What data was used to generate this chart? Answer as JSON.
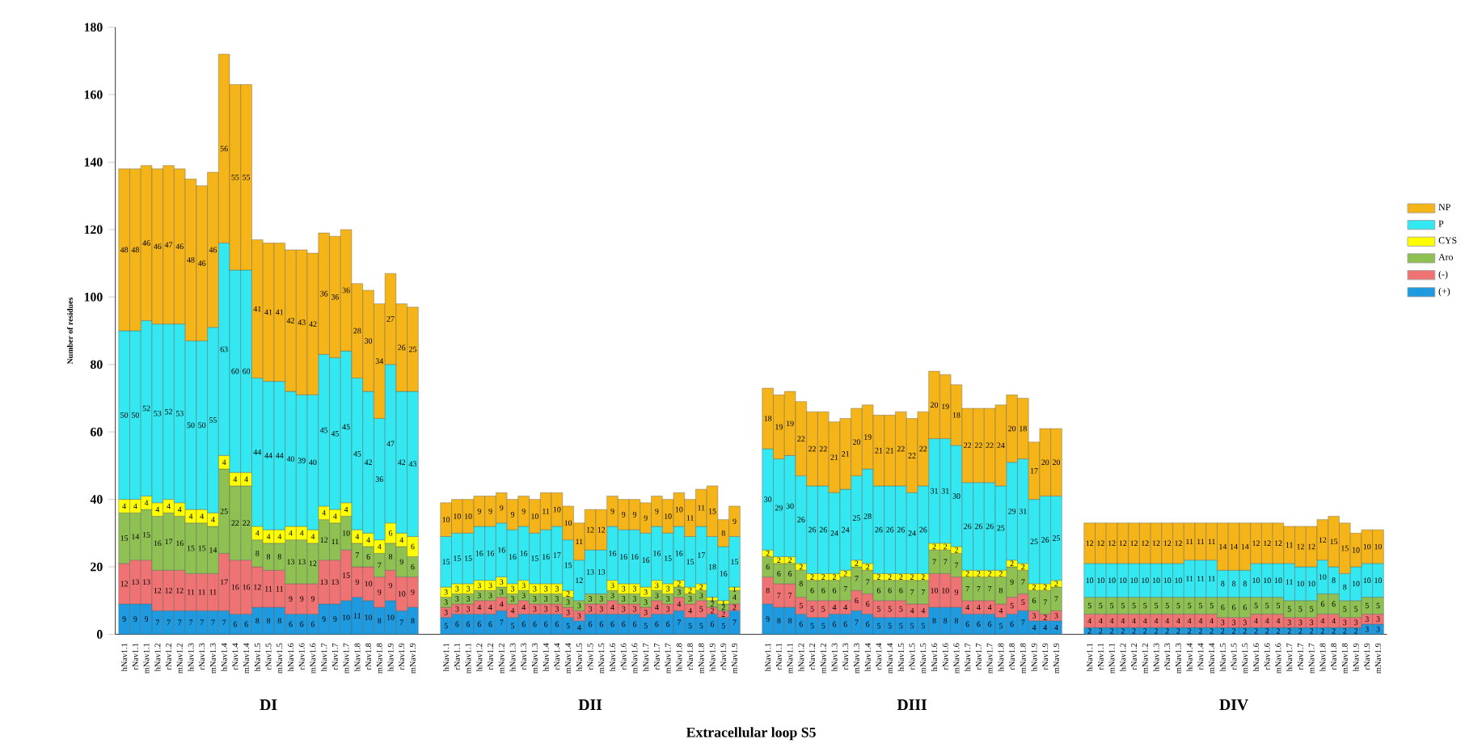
{
  "chart_data": {
    "type": "bar",
    "stacked": true,
    "ylabel": "Number of residues",
    "xlabel": "Extracellular loop S5",
    "annotations": [
      "DI",
      "DII",
      "DIII",
      "DIV"
    ],
    "categories": [
      "hNav1.1",
      "rNav1.1",
      "mNav1.1",
      "hNav1.2",
      "rNav1.2",
      "mNav1.2",
      "hNav1.3",
      "rNav1.3",
      "mNav1.3",
      "hNav1.4",
      "rNav1.4",
      "mNav1.4",
      "hNav1.5",
      "rNav1.5",
      "mNav1.5",
      "hNav1.6",
      "rNav1.6",
      "mNav1.6",
      "hNav1.7",
      "rNav1.7",
      "mNav1.7",
      "hNav1.8",
      "rNav1.8",
      "mNav1.8",
      "hNav1.9",
      "rNav1.9",
      "mNav1.9",
      "hNav1.1",
      "rNav1.1",
      "mNav1.1",
      "hNav1.2",
      "rNav1.2",
      "mNav1.2",
      "hNav1.3",
      "rNav1.3",
      "mNav1.3",
      "hNav1.4",
      "rNav1.4",
      "mNav1.4",
      "hNav1.5",
      "rNav1.5",
      "mNav1.5",
      "hNav1.6",
      "rNav1.6",
      "mNav1.6",
      "hNav1.7",
      "rNav1.7",
      "mNav1.7",
      "hNav1.8",
      "rNav1.8",
      "mNav1.8",
      "hNav1.9",
      "rNav1.9",
      "mNav1.9",
      "hNav1.1",
      "rNav1.1",
      "mNav1.1",
      "hNav1.2",
      "rNav1.2",
      "mNav1.2",
      "hNav1.3",
      "rNav1.3",
      "mNav1.3",
      "hNav1.4",
      "rNav1.4",
      "mNav1.4",
      "hNav1.5",
      "rNav1.5",
      "mNav1.5",
      "hNav1.6",
      "rNav1.6",
      "mNav1.6",
      "hNav1.7",
      "rNav1.7",
      "mNav1.7",
      "hNav1.8",
      "rNav1.8",
      "mNav1.8",
      "hNav1.9",
      "rNav1.9",
      "mNav1.9",
      "hNav1.1",
      "rNav1.1",
      "mNav1.1",
      "hNav1.2",
      "rNav1.2",
      "mNav1.2",
      "hNav1.3",
      "rNav1.3",
      "mNav1.3",
      "hNav1.4",
      "rNav1.4",
      "mNav1.4",
      "hNav1.5",
      "rNav1.5",
      "mNav1.5",
      "hNav1.6",
      "rNav1.6",
      "mNav1.6",
      "hNav1.7",
      "rNav1.7",
      "mNav1.7",
      "hNav1.8",
      "rNav1.8",
      "mNav1.8",
      "hNav1.9",
      "rNav1.9",
      "mNav1.9"
    ],
    "series": [
      {
        "name": "(+)",
        "color": "#1e9be0",
        "values": [
          9,
          9,
          9,
          7,
          7,
          7,
          7,
          7,
          7,
          7,
          6,
          6,
          8,
          8,
          8,
          6,
          6,
          6,
          9,
          9,
          10,
          11,
          10,
          8,
          10,
          7,
          8,
          5,
          6,
          6,
          6,
          6,
          7,
          5,
          6,
          6,
          6,
          6,
          5,
          4,
          6,
          6,
          6,
          6,
          6,
          5,
          6,
          6,
          7,
          5,
          5,
          6,
          5,
          7,
          9,
          8,
          8,
          6,
          5,
          5,
          6,
          6,
          7,
          6,
          5,
          5,
          5,
          5,
          5,
          8,
          8,
          8,
          6,
          6,
          6,
          5,
          6,
          7,
          4,
          4,
          4,
          2,
          2,
          2,
          2,
          2,
          2,
          2,
          2,
          2,
          2,
          2,
          2,
          2,
          2,
          2,
          2,
          2,
          2,
          2,
          2,
          2,
          2,
          2,
          2,
          2,
          3,
          3
        ]
      },
      {
        "name": "(-)",
        "color": "#f07373",
        "values": [
          12,
          13,
          13,
          12,
          12,
          12,
          11,
          11,
          11,
          17,
          16,
          16,
          12,
          11,
          11,
          9,
          9,
          9,
          13,
          13,
          15,
          9,
          10,
          9,
          9,
          10,
          9,
          3,
          3,
          3,
          4,
          4,
          4,
          4,
          4,
          3,
          3,
          3,
          3,
          3,
          3,
          3,
          4,
          3,
          3,
          3,
          4,
          3,
          4,
          4,
          5,
          2,
          2,
          2,
          8,
          7,
          7,
          5,
          5,
          5,
          4,
          4,
          6,
          6,
          5,
          5,
          5,
          4,
          4,
          10,
          10,
          9,
          4,
          4,
          4,
          4,
          5,
          5,
          3,
          2,
          3,
          4,
          4,
          4,
          4,
          4,
          4,
          4,
          4,
          4,
          4,
          4,
          4,
          3,
          3,
          3,
          4,
          4,
          4,
          3,
          3,
          3,
          4,
          4,
          3,
          3,
          3,
          3
        ]
      },
      {
        "name": "Aro",
        "color": "#8fc152",
        "values": [
          15,
          14,
          15,
          16,
          17,
          16,
          15,
          15,
          14,
          25,
          22,
          22,
          8,
          8,
          8,
          13,
          13,
          12,
          12,
          11,
          10,
          7,
          6,
          7,
          8,
          9,
          6,
          3,
          3,
          3,
          3,
          3,
          3,
          3,
          3,
          3,
          3,
          3,
          3,
          3,
          3,
          3,
          3,
          3,
          3,
          3,
          3,
          3,
          3,
          3,
          3,
          2,
          2,
          4,
          6,
          6,
          6,
          8,
          6,
          6,
          6,
          7,
          7,
          7,
          6,
          6,
          6,
          7,
          7,
          7,
          7,
          7,
          7,
          7,
          7,
          8,
          9,
          7,
          6,
          7,
          7,
          5,
          5,
          5,
          5,
          5,
          5,
          5,
          5,
          5,
          5,
          5,
          5,
          6,
          6,
          6,
          5,
          5,
          5,
          5,
          5,
          5,
          6,
          6,
          5,
          5,
          5,
          5
        ]
      },
      {
        "name": "CYS",
        "color": "#ffff00",
        "values": [
          4,
          4,
          4,
          4,
          4,
          4,
          4,
          4,
          4,
          4,
          4,
          4,
          4,
          4,
          4,
          4,
          4,
          4,
          4,
          4,
          4,
          4,
          4,
          4,
          6,
          4,
          6,
          3,
          3,
          3,
          3,
          3,
          3,
          3,
          3,
          3,
          3,
          3,
          2,
          null,
          null,
          null,
          3,
          3,
          3,
          3,
          3,
          3,
          2,
          2,
          2,
          1,
          1,
          1,
          2,
          2,
          2,
          2,
          2,
          2,
          2,
          2,
          2,
          2,
          2,
          2,
          2,
          2,
          2,
          2,
          2,
          2,
          2,
          2,
          2,
          2,
          2,
          2,
          2,
          2,
          2,
          null,
          null,
          null,
          null,
          null,
          null,
          null,
          null,
          null,
          null,
          null,
          null,
          null,
          null,
          null,
          null,
          null,
          null,
          null,
          null,
          null,
          null,
          null,
          null,
          null,
          null,
          null
        ]
      },
      {
        "name": "P",
        "color": "#33e8f0",
        "values": [
          50,
          50,
          52,
          53,
          52,
          53,
          50,
          50,
          55,
          63,
          60,
          60,
          44,
          44,
          44,
          40,
          39,
          40,
          45,
          45,
          45,
          45,
          42,
          36,
          47,
          42,
          43,
          15,
          15,
          15,
          16,
          16,
          16,
          16,
          16,
          15,
          16,
          17,
          15,
          12,
          13,
          13,
          16,
          16,
          16,
          16,
          16,
          15,
          16,
          15,
          17,
          18,
          16,
          15,
          30,
          29,
          30,
          26,
          26,
          26,
          24,
          24,
          25,
          28,
          26,
          26,
          26,
          24,
          26,
          31,
          31,
          30,
          26,
          26,
          26,
          25,
          29,
          31,
          25,
          26,
          25,
          10,
          10,
          10,
          10,
          10,
          10,
          10,
          10,
          10,
          11,
          11,
          11,
          8,
          8,
          8,
          10,
          10,
          10,
          11,
          10,
          10,
          10,
          8,
          8,
          10,
          10,
          10
        ]
      },
      {
        "name": "NP",
        "color": "#f5b519",
        "values": [
          48,
          48,
          46,
          46,
          47,
          46,
          48,
          46,
          46,
          56,
          55,
          55,
          41,
          41,
          41,
          42,
          43,
          42,
          36,
          36,
          36,
          28,
          30,
          34,
          27,
          26,
          25,
          10,
          10,
          10,
          9,
          9,
          9,
          9,
          9,
          10,
          11,
          10,
          10,
          11,
          12,
          12,
          9,
          9,
          9,
          9,
          9,
          10,
          10,
          11,
          11,
          15,
          8,
          9,
          18,
          19,
          19,
          22,
          22,
          22,
          21,
          21,
          20,
          19,
          21,
          21,
          22,
          22,
          22,
          20,
          19,
          18,
          22,
          22,
          22,
          24,
          20,
          18,
          17,
          20,
          20,
          12,
          12,
          12,
          12,
          12,
          12,
          12,
          12,
          12,
          11,
          11,
          11,
          14,
          14,
          14,
          12,
          12,
          12,
          11,
          12,
          12,
          12,
          15,
          15,
          10,
          10,
          10
        ]
      }
    ],
    "ylim": [
      0,
      180
    ],
    "yticks": [
      0,
      20,
      40,
      60,
      80,
      100,
      120,
      140,
      160,
      180
    ],
    "data_labels": true,
    "legend": "right"
  }
}
